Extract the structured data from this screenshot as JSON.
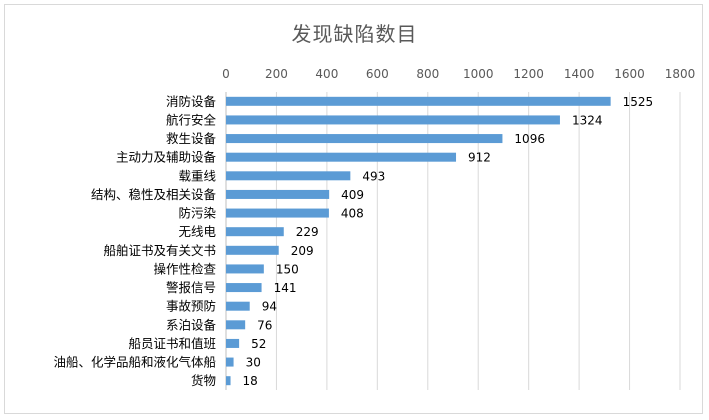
{
  "chart_data": {
    "type": "bar",
    "orientation": "horizontal",
    "title": "发现缺陷数目",
    "xlim": [
      0,
      1800
    ],
    "x_ticks": [
      "0",
      "200",
      "400",
      "600",
      "800",
      "1000",
      "1200",
      "1400",
      "1600",
      "1800"
    ],
    "x_axis_position": "top",
    "grid": true,
    "legend": "none",
    "bar_color": "#5b9bd5",
    "categories": [
      "消防设备",
      "航行安全",
      "救生设备",
      "主动力及辅助设备",
      "载重线",
      "结构、稳性及相关设备",
      "防污染",
      "无线电",
      "船舶证书及有关文书",
      "操作性检查",
      "警报信号",
      "事故预防",
      "系泊设备",
      "船员证书和值班",
      "油船、化学品船和液化气体船",
      "货物"
    ],
    "values": [
      1525,
      1324,
      1096,
      912,
      493,
      409,
      408,
      229,
      209,
      150,
      141,
      94,
      76,
      52,
      30,
      18
    ]
  }
}
